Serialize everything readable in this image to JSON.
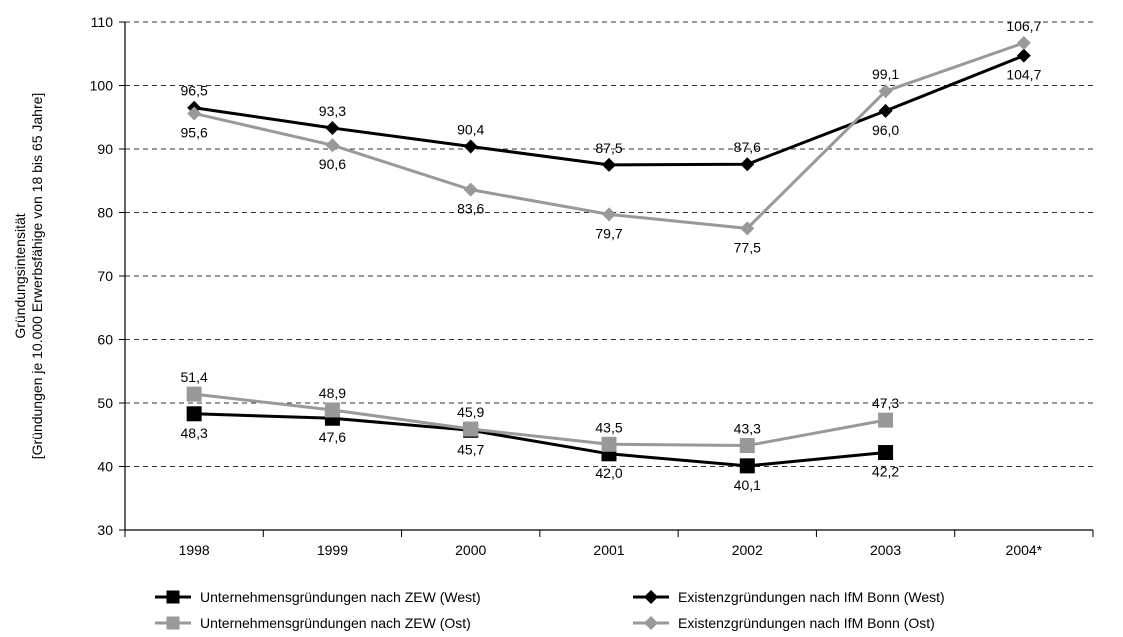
{
  "chart_data": {
    "type": "line",
    "title": "",
    "xlabel": "",
    "ylabel": "Gründungsintensität",
    "ylabel2": "[Gründungen je 10.000 Erwerbsfähige von 18 bis 65 Jahre]",
    "categories": [
      "1998",
      "1999",
      "2000",
      "2001",
      "2002",
      "2003",
      "2004*"
    ],
    "ylim": [
      30,
      110
    ],
    "yticks": [
      "30",
      "40",
      "50",
      "60",
      "70",
      "80",
      "90",
      "100",
      "110"
    ],
    "grid": "dashed horizontal",
    "legend_position": "bottom",
    "series": [
      {
        "name": "Unternehmensgründungen nach ZEW (West)",
        "color": "#000000",
        "marker": "square",
        "values": [
          48.3,
          47.6,
          45.7,
          42.0,
          40.1,
          42.2,
          null
        ],
        "labels": [
          "48,3",
          "47,6",
          "45,7",
          "42,0",
          "40,1",
          "42,2",
          null
        ]
      },
      {
        "name": "Unternehmensgründungen nach ZEW (Ost)",
        "color": "#999999",
        "marker": "square",
        "values": [
          51.4,
          48.9,
          45.9,
          43.5,
          43.3,
          47.3,
          null
        ],
        "labels": [
          "51,4",
          "48,9",
          "45,9",
          "43,5",
          "43,3",
          "47,3",
          null
        ]
      },
      {
        "name": "Existenzgründungen nach IfM Bonn (West)",
        "color": "#000000",
        "marker": "diamond",
        "values": [
          96.5,
          93.3,
          90.4,
          87.5,
          87.6,
          96.0,
          104.7
        ],
        "labels": [
          "96,5",
          "93,3",
          "90,4",
          "87,5",
          "87,6",
          "96,0",
          "104,7"
        ]
      },
      {
        "name": "Existenzgründungen nach IfM Bonn (Ost)",
        "color": "#999999",
        "marker": "diamond",
        "values": [
          95.6,
          90.6,
          83.6,
          79.7,
          77.5,
          99.1,
          106.7
        ],
        "labels": [
          "95,6",
          "90,6",
          "83,6",
          "79,7",
          "77,5",
          "99,1",
          "106,7"
        ]
      }
    ]
  }
}
